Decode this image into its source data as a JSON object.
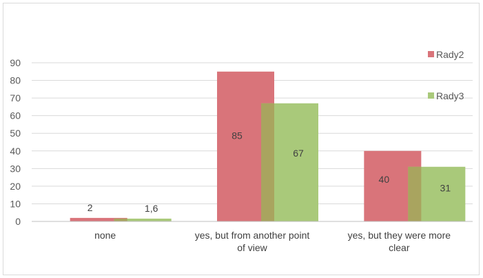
{
  "chart_data": {
    "type": "bar",
    "categories": [
      [
        "none"
      ],
      [
        "yes, but from another  point",
        "of view"
      ],
      [
        "yes, but they were more",
        "clear"
      ]
    ],
    "series": [
      {
        "name": "Rady2",
        "values": [
          2,
          85,
          40
        ],
        "labels": [
          "2",
          "85",
          "40"
        ],
        "color": "#d9747a"
      },
      {
        "name": "Rady3",
        "values": [
          1.6,
          67,
          31
        ],
        "labels": [
          "1,6",
          "67",
          "31"
        ],
        "color": "#a9c97a"
      }
    ],
    "overlap_color": "#a9a45f",
    "ylim": [
      0,
      90
    ],
    "yticks": [
      0,
      10,
      20,
      30,
      40,
      50,
      60,
      70,
      80,
      90
    ],
    "grid": true,
    "legend_position": "right",
    "title": "",
    "xlabel": "",
    "ylabel": ""
  }
}
